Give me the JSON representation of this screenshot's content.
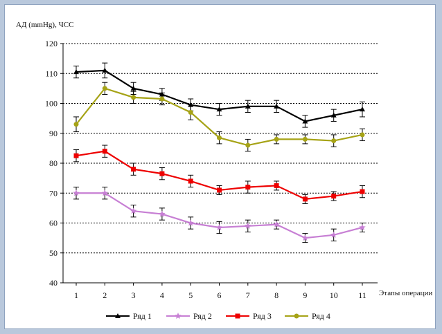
{
  "chart_data": {
    "type": "line",
    "title": "",
    "ylabel": "АД (mmHg), ЧСС",
    "xlabel": "Этапы операции",
    "x": [
      1,
      2,
      3,
      4,
      5,
      6,
      7,
      8,
      9,
      10,
      11
    ],
    "ylim": [
      40,
      120
    ],
    "yticks": [
      40,
      50,
      60,
      70,
      80,
      90,
      100,
      110,
      120
    ],
    "grid": true,
    "legend_position": "bottom",
    "series": [
      {
        "name": "Ряд 1",
        "color": "#000000",
        "marker": "triangle",
        "values": [
          110.5,
          111,
          105,
          103,
          99.5,
          98,
          99,
          99,
          94,
          96,
          98
        ],
        "error": [
          2,
          2.5,
          2,
          2,
          2,
          2,
          2,
          2,
          2,
          2,
          2.5
        ]
      },
      {
        "name": "Ряд 2",
        "color": "#c77fd4",
        "marker": "star",
        "values": [
          70,
          70,
          64,
          63,
          60,
          58.5,
          59,
          59.5,
          55,
          56,
          58.5
        ],
        "error": [
          2,
          2,
          2,
          2,
          2,
          2,
          2,
          1.5,
          1.5,
          2,
          1.5
        ]
      },
      {
        "name": "Ряд 3",
        "color": "#ee0000",
        "marker": "square",
        "values": [
          82.5,
          84,
          78,
          76.5,
          74,
          71,
          72,
          72.5,
          68,
          69,
          70.5
        ],
        "error": [
          2,
          2,
          2,
          2,
          2,
          1.5,
          2,
          1.5,
          1.5,
          1.5,
          2
        ]
      },
      {
        "name": "Ряд 4",
        "color": "#a6a316",
        "marker": "circle",
        "values": [
          93,
          105,
          102,
          101.5,
          97,
          88.5,
          86,
          88,
          88,
          87.5,
          89.5
        ],
        "error": [
          2.5,
          2,
          2,
          2,
          2.5,
          2,
          2,
          1.5,
          1.5,
          2,
          2
        ]
      }
    ]
  }
}
